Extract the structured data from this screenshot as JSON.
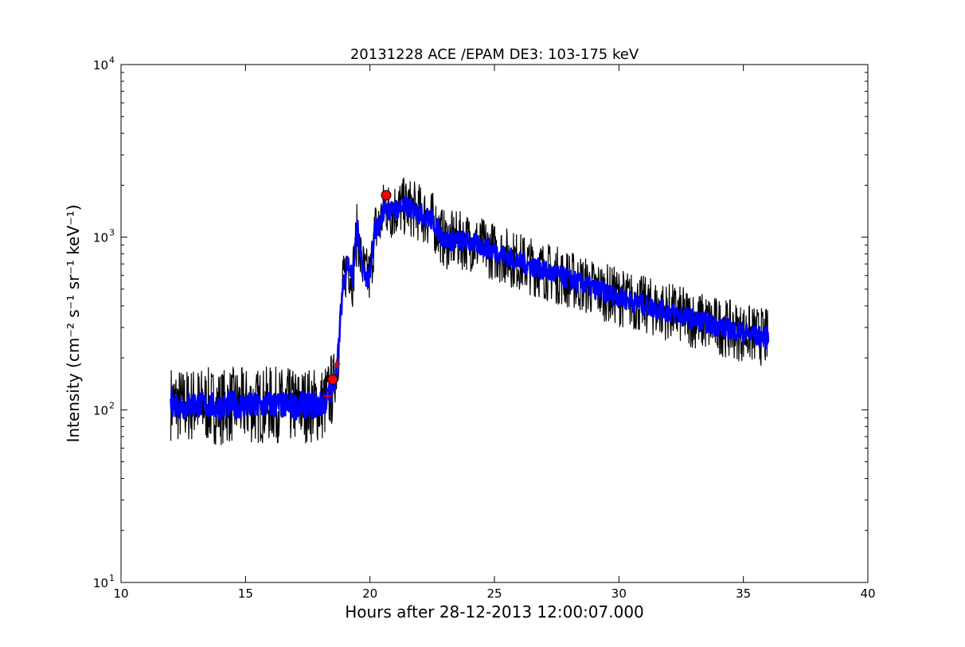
{
  "chart_data": {
    "type": "line",
    "title": "20131228 ACE /EPAM DE3: 103-175 keV",
    "xlabel": "Hours after 28-12-2013 12:00:07.000",
    "ylabel": "Intensity (cm⁻² s⁻¹ sr⁻¹ keV⁻¹)",
    "xlim": [
      10,
      40
    ],
    "ylim": [
      10,
      10000
    ],
    "yscale": "log",
    "grid": false,
    "x_ticks": [
      "10",
      "15",
      "20",
      "25",
      "30",
      "35",
      "40"
    ],
    "y_ticks": [
      {
        "base": "10",
        "exp": "1"
      },
      {
        "base": "10",
        "exp": "2"
      },
      {
        "base": "10",
        "exp": "3"
      },
      {
        "base": "10",
        "exp": "4"
      }
    ],
    "series": [
      {
        "color": "#000000",
        "x": [
          12.0,
          12.5,
          13.0,
          13.5,
          14.0,
          14.5,
          15.0,
          15.5,
          16.0,
          16.5,
          17.0,
          17.5,
          18.0,
          18.3,
          18.5,
          18.7,
          18.9,
          19.1,
          19.3,
          19.5,
          19.6,
          19.8,
          20.0,
          20.2,
          20.4,
          20.6,
          20.8,
          21.0,
          21.3,
          21.6,
          22.0,
          22.5,
          23.0,
          23.5,
          24.0,
          25.0,
          26.0,
          27.0,
          28.0,
          29.0,
          30.0,
          31.0,
          32.0,
          33.0,
          34.0,
          35.0,
          36.0
        ],
        "y": [
          110,
          105,
          108,
          106,
          104,
          107,
          106,
          105,
          108,
          106,
          105,
          107,
          106,
          115,
          135,
          190,
          500,
          720,
          580,
          1150,
          780,
          600,
          580,
          1100,
          1180,
          1550,
          1400,
          1450,
          1500,
          1480,
          1380,
          1250,
          960,
          960,
          940,
          830,
          720,
          640,
          570,
          505,
          450,
          405,
          370,
          335,
          305,
          280,
          260
        ]
      },
      {
        "color": "#0000ff",
        "x": [
          12.0,
          12.5,
          13.0,
          13.5,
          14.0,
          14.5,
          15.0,
          15.5,
          16.0,
          16.5,
          17.0,
          17.5,
          18.0,
          18.3,
          18.5,
          18.7,
          18.9,
          19.1,
          19.3,
          19.5,
          19.6,
          19.8,
          20.0,
          20.2,
          20.4,
          20.6,
          20.8,
          21.0,
          21.3,
          21.6,
          22.0,
          22.5,
          23.0,
          23.5,
          24.0,
          25.0,
          26.0,
          27.0,
          28.0,
          29.0,
          30.0,
          31.0,
          32.0,
          33.0,
          34.0,
          35.0,
          36.0
        ],
        "y": [
          110,
          105,
          108,
          106,
          104,
          107,
          106,
          105,
          108,
          106,
          105,
          107,
          106,
          115,
          135,
          190,
          500,
          720,
          580,
          1150,
          780,
          600,
          580,
          1100,
          1180,
          1550,
          1400,
          1450,
          1500,
          1480,
          1380,
          1250,
          960,
          960,
          940,
          830,
          720,
          640,
          570,
          505,
          450,
          405,
          370,
          335,
          305,
          280,
          260
        ]
      }
    ],
    "markers": [
      {
        "x": 18.5,
        "y": 150,
        "color": "#ff0000"
      },
      {
        "x": 20.65,
        "y": 1750,
        "color": "#ff0000"
      }
    ],
    "crosshairs": [
      {
        "x": 18.3,
        "y": 120,
        "color": "#ff0000"
      },
      {
        "x": 18.65,
        "y": 185,
        "color": "#ff0000"
      }
    ]
  }
}
